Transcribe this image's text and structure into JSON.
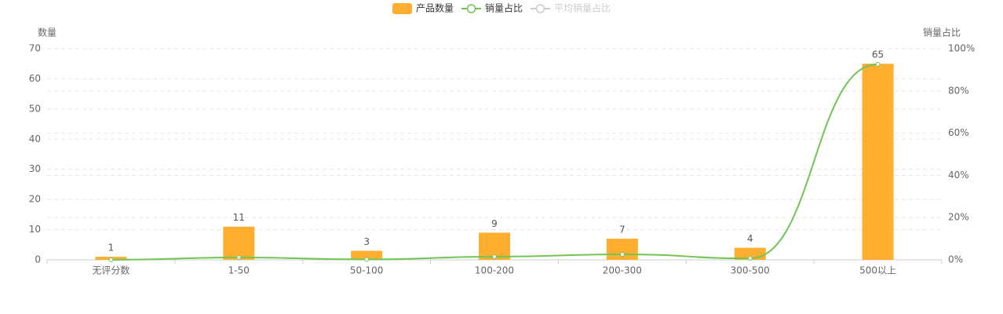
{
  "chart_data": {
    "type": "bar_line",
    "categories": [
      "无评分数",
      "1-50",
      "50-100",
      "100-200",
      "200-300",
      "300-500",
      "500以上"
    ],
    "series": [
      {
        "name": "产品数量",
        "type": "bar",
        "color": "#ffae2f",
        "values": [
          1,
          11,
          3,
          9,
          7,
          4,
          65
        ]
      },
      {
        "name": "销量占比",
        "type": "line",
        "axis": "y2",
        "color": "#70c553",
        "values": [
          0,
          1.1,
          0.2,
          1.5,
          2.6,
          0.7,
          92.6
        ]
      }
    ],
    "hidden_series": [
      {
        "name": "平均销量占比",
        "color": "#cccccc"
      }
    ],
    "y_label": "数量",
    "y2_label": "销量占比",
    "ylim": [
      0,
      70
    ],
    "yticks": [
      0,
      10,
      20,
      30,
      40,
      50,
      60,
      70
    ],
    "y2lim": [
      0,
      100
    ],
    "y2ticks": [
      {
        "value": 0,
        "label": "0%"
      },
      {
        "value": 20,
        "label": "20%"
      },
      {
        "value": 40,
        "label": "40%"
      },
      {
        "value": 60,
        "label": "60%"
      },
      {
        "value": 80,
        "label": "80%"
      },
      {
        "value": 100,
        "label": "100%"
      }
    ],
    "grid": true
  }
}
